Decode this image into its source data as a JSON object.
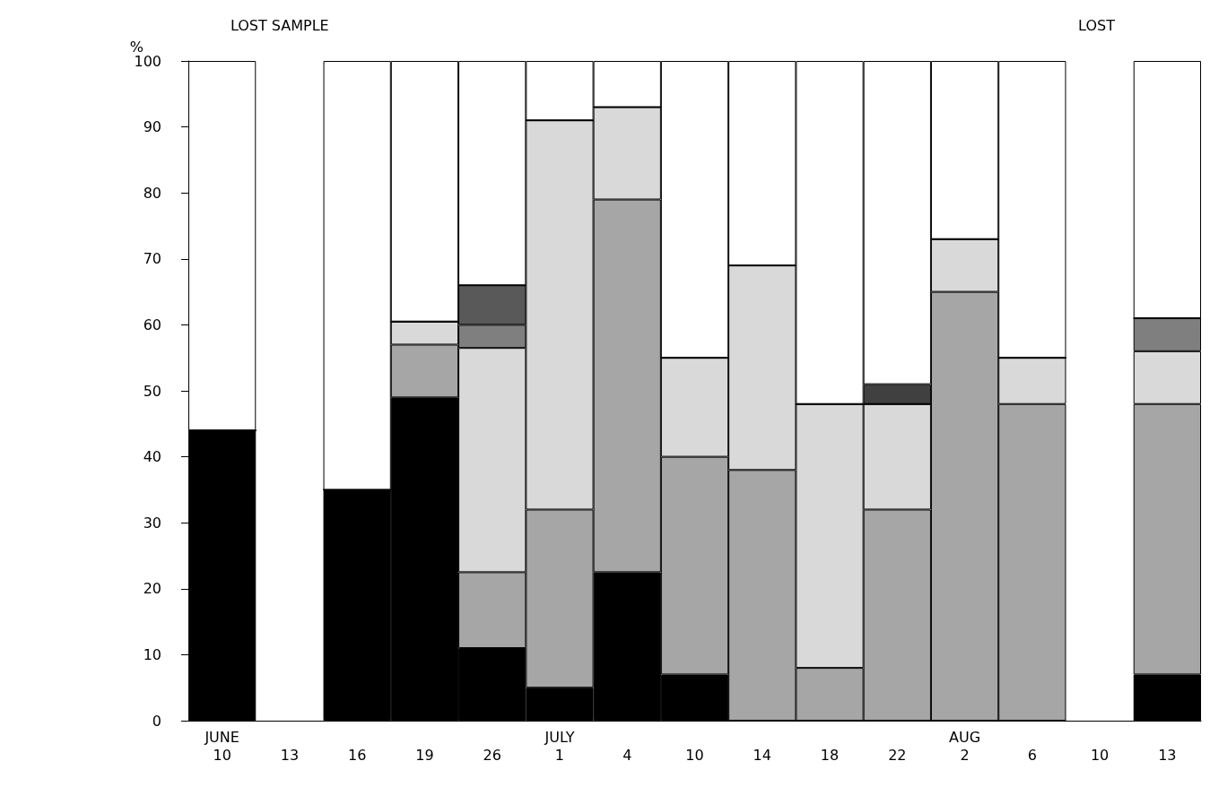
{
  "chart_data": {
    "type": "bar",
    "stacked": true,
    "ylabel": "%",
    "ylim": [
      0,
      100
    ],
    "yticks": [
      0,
      10,
      20,
      30,
      40,
      50,
      60,
      70,
      80,
      90,
      100
    ],
    "grid": false,
    "categories": [
      "JUNE\n10",
      "13",
      "16",
      "19",
      "26",
      "JULY\n1",
      "4",
      "10",
      "14",
      "18",
      "22",
      "AUG\n2",
      "6",
      "10",
      "13"
    ],
    "series": [
      {
        "color": "#000000",
        "values": [
          44,
          null,
          35,
          49,
          11,
          5,
          22.5,
          7,
          0,
          0,
          0,
          0,
          0,
          null,
          7
        ]
      },
      {
        "color": "#a6a6a6",
        "values": [
          0,
          null,
          0,
          8,
          11.5,
          27,
          56.5,
          33,
          38,
          8,
          32,
          65,
          48,
          null,
          41
        ]
      },
      {
        "color": "#d9d9d9",
        "values": [
          0,
          null,
          0,
          3.5,
          34,
          59,
          14,
          15,
          31,
          40,
          16,
          8,
          7,
          null,
          8
        ]
      },
      {
        "color": "#7f7f7f",
        "values": [
          0,
          null,
          0,
          0,
          3.5,
          0,
          0,
          0,
          0,
          0,
          0,
          0,
          0,
          null,
          5
        ]
      },
      {
        "color": "#595959",
        "values": [
          0,
          null,
          0,
          0,
          6,
          0,
          0,
          0,
          0,
          0,
          0,
          0,
          0,
          null,
          0
        ]
      },
      {
        "color": "#404040",
        "values": [
          0,
          null,
          0,
          0,
          0,
          0,
          0,
          0,
          0,
          0,
          3,
          0,
          0,
          null,
          0
        ]
      },
      {
        "color": "#ffffff",
        "values": [
          56,
          null,
          65,
          39.5,
          34,
          9,
          7,
          45,
          31,
          52,
          49,
          27,
          45,
          null,
          39
        ]
      }
    ],
    "annotations": [
      "LOST SAMPLE",
      "LOST"
    ]
  }
}
